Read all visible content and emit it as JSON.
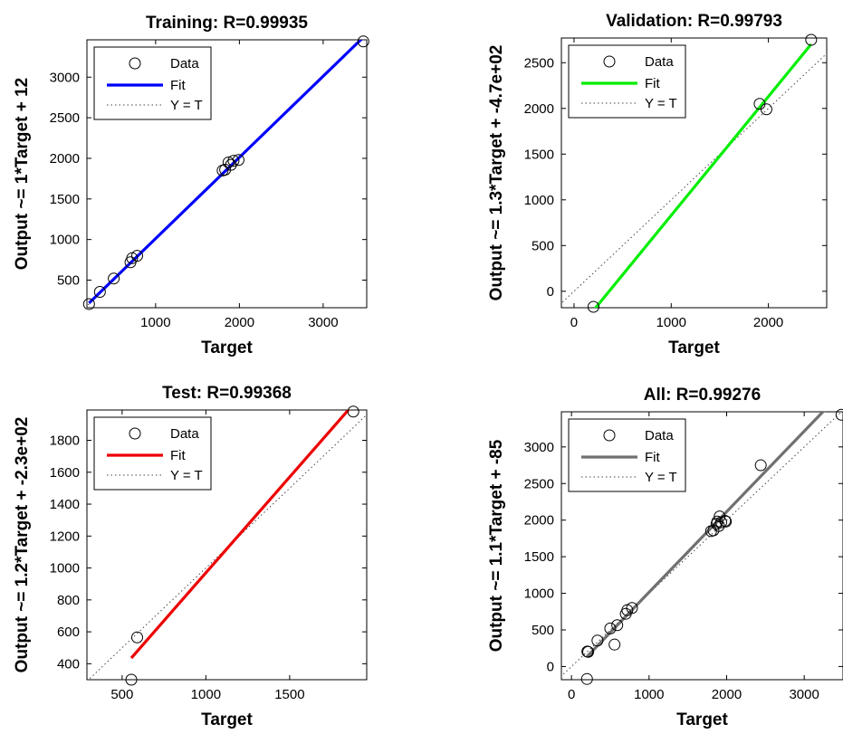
{
  "chart_data": [
    {
      "type": "scatter",
      "title": "Training: R=0.99935",
      "xlabel": "Target",
      "ylabel": "Output ~= 1*Target + 12",
      "xlim": [
        180,
        3520
      ],
      "ylim": [
        160,
        3460
      ],
      "xticks": [
        1000,
        2000,
        3000
      ],
      "yticks": [
        500,
        1000,
        1500,
        2000,
        2500,
        3000
      ],
      "legend": {
        "position": "top-left",
        "entries": [
          "Data",
          "Fit",
          "Y = T"
        ]
      },
      "fit": {
        "slope": 1.0,
        "intercept": 12,
        "color": "#0000ff"
      },
      "points": [
        {
          "x": 205,
          "y": 205
        },
        {
          "x": 335,
          "y": 355
        },
        {
          "x": 500,
          "y": 520
        },
        {
          "x": 700,
          "y": 720
        },
        {
          "x": 720,
          "y": 770
        },
        {
          "x": 780,
          "y": 800
        },
        {
          "x": 1800,
          "y": 1850
        },
        {
          "x": 1830,
          "y": 1860
        },
        {
          "x": 1870,
          "y": 1950
        },
        {
          "x": 1900,
          "y": 1920
        },
        {
          "x": 1930,
          "y": 1970
        },
        {
          "x": 1990,
          "y": 1980
        },
        {
          "x": 3480,
          "y": 3440
        }
      ]
    },
    {
      "type": "scatter",
      "title": "Validation: R=0.99793",
      "xlabel": "Target",
      "ylabel": "Output ~= 1.3*Target + -4.7e+02",
      "xlim": [
        -130,
        2600
      ],
      "ylim": [
        -180,
        2770
      ],
      "xticks": [
        0,
        1000,
        2000
      ],
      "yticks": [
        0,
        500,
        1000,
        1500,
        2000,
        2500
      ],
      "legend": {
        "position": "top-left",
        "entries": [
          "Data",
          "Fit",
          "Y = T"
        ]
      },
      "fit": {
        "slope": 1.3,
        "intercept": -470,
        "color": "#00ee00"
      },
      "points": [
        {
          "x": 200,
          "y": -170
        },
        {
          "x": 1910,
          "y": 2050
        },
        {
          "x": 1980,
          "y": 1990
        },
        {
          "x": 2440,
          "y": 2750
        }
      ]
    },
    {
      "type": "scatter",
      "title": "Test: R=0.99368",
      "xlabel": "Target",
      "ylabel": "Output ~= 1.2*Target + -2.3e+02",
      "xlim": [
        290,
        1960
      ],
      "ylim": [
        300,
        1990
      ],
      "xticks": [
        500,
        1000,
        1500
      ],
      "yticks": [
        400,
        600,
        800,
        1000,
        1200,
        1400,
        1600,
        1800
      ],
      "legend": {
        "position": "top-left",
        "entries": [
          "Data",
          "Fit",
          "Y = T"
        ]
      },
      "fit": {
        "slope": 1.2,
        "intercept": -230,
        "color": "#ee0000"
      },
      "points": [
        {
          "x": 555,
          "y": 300
        },
        {
          "x": 590,
          "y": 565
        },
        {
          "x": 1880,
          "y": 1980
        }
      ]
    },
    {
      "type": "scatter",
      "title": "All: R=0.99276",
      "xlabel": "Target",
      "ylabel": "Output ~= 1.1*Target + -85",
      "xlim": [
        -130,
        3500
      ],
      "ylim": [
        -180,
        3480
      ],
      "xticks": [
        0,
        1000,
        2000,
        3000
      ],
      "yticks": [
        0,
        500,
        1000,
        1500,
        2000,
        2500,
        3000
      ],
      "legend": {
        "position": "top-left",
        "entries": [
          "Data",
          "Fit",
          "Y = T"
        ]
      },
      "fit": {
        "slope": 1.1,
        "intercept": -85,
        "color": "#707070"
      },
      "points": [
        {
          "x": 200,
          "y": -170
        },
        {
          "x": 205,
          "y": 205
        },
        {
          "x": 215,
          "y": 200
        },
        {
          "x": 335,
          "y": 355
        },
        {
          "x": 500,
          "y": 520
        },
        {
          "x": 555,
          "y": 300
        },
        {
          "x": 590,
          "y": 565
        },
        {
          "x": 700,
          "y": 720
        },
        {
          "x": 720,
          "y": 770
        },
        {
          "x": 780,
          "y": 800
        },
        {
          "x": 1800,
          "y": 1850
        },
        {
          "x": 1830,
          "y": 1860
        },
        {
          "x": 1870,
          "y": 1950
        },
        {
          "x": 1880,
          "y": 1980
        },
        {
          "x": 1900,
          "y": 1920
        },
        {
          "x": 1910,
          "y": 2050
        },
        {
          "x": 1930,
          "y": 1970
        },
        {
          "x": 1980,
          "y": 1990
        },
        {
          "x": 1990,
          "y": 1980
        },
        {
          "x": 2440,
          "y": 2750
        },
        {
          "x": 3480,
          "y": 3440
        }
      ]
    }
  ]
}
